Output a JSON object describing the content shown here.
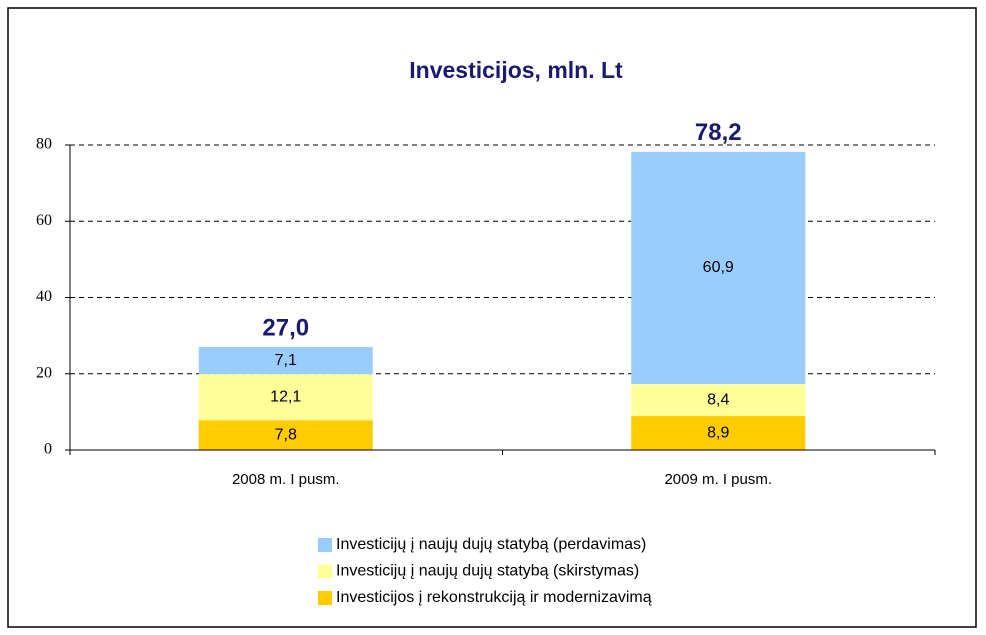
{
  "chart_data": {
    "type": "stacked_bar",
    "title": "Investicijos, mln. Lt",
    "categories": [
      "2008 m. I pusm.",
      "2009 m. I pusm."
    ],
    "series": [
      {
        "name": "Investicijos į rekonstrukciją ir modernizavimą",
        "color": "#ffcc00",
        "values": [
          7.8,
          8.9
        ],
        "value_labels": [
          "7,8",
          "8,9"
        ]
      },
      {
        "name": "Investicijų į naujų dujų statybą (skirstymas)",
        "color": "#ffff99",
        "values": [
          12.1,
          8.4
        ],
        "value_labels": [
          "12,1",
          "8,4"
        ]
      },
      {
        "name": "Investicijų į naujų dujų statybą (perdavimas)",
        "color": "#99ccff",
        "values": [
          7.1,
          60.9
        ],
        "value_labels": [
          "7,1",
          "60,9"
        ]
      }
    ],
    "totals": [
      27.0,
      78.2
    ],
    "total_labels": [
      "27,0",
      "78,2"
    ],
    "ylim": [
      0,
      80
    ],
    "yticks": [
      0,
      20,
      40,
      60,
      80
    ],
    "grid": true
  }
}
